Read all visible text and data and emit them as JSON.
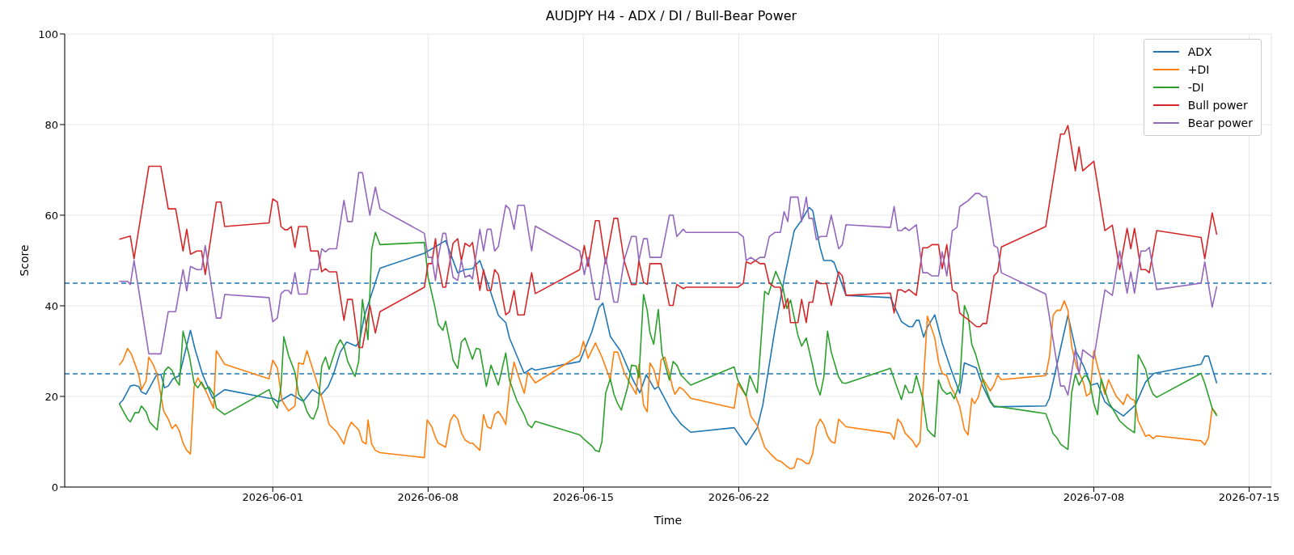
{
  "chart_data": {
    "type": "line",
    "title": "AUDJPY H4 - ADX / DI / Bull-Bear Power",
    "xlabel": "Time",
    "ylabel": "Score",
    "xlim": [
      "2026-05-22T15:00",
      "2026-07-16T00:00"
    ],
    "xticks": [
      "2026-06-01",
      "2026-06-08",
      "2026-06-15",
      "2026-06-22",
      "2026-07-01",
      "2026-07-08",
      "2026-07-15"
    ],
    "ylim": [
      0,
      100
    ],
    "yticks": [
      0,
      20,
      40,
      60,
      80,
      100
    ],
    "grid": true,
    "legend": "top right",
    "line_style": "solid",
    "ref_lines": [
      {
        "axis": "y",
        "value": 45,
        "color": "#1f77b4",
        "line_style": "dashed"
      },
      {
        "axis": "y",
        "value": 25,
        "color": "#1f77b4",
        "line_style": "dashed"
      }
    ],
    "series": [
      {
        "name": "ADX",
        "color": "#1f77b4",
        "x": [
          "2026-05-25T02:00",
          "2026-05-25T06:00",
          "2026-05-25T14:00",
          "2026-05-25T18:00",
          "2026-05-25T23:00",
          "2026-05-26T02:00",
          "2026-05-26T07:00",
          "2026-05-26T18:00",
          "2026-05-26T23:00",
          "2026-05-27T03:00",
          "2026-05-27T07:00",
          "2026-05-27T12:00",
          "2026-05-27T19:00",
          "2026-05-28T07:00",
          "2026-05-28T12:00",
          "2026-05-28T20:00",
          "2026-05-29T07:00",
          "2026-05-29T20:00",
          "2026-05-31T20:00",
          "2026-06-01T00:00",
          "2026-06-01T06:00",
          "2026-06-01T20:00",
          "2026-06-02T09:00",
          "2026-06-02T19:00",
          "2026-06-03T04:00",
          "2026-06-03T12:00",
          "2026-06-03T18:00",
          "2026-06-04T01:00",
          "2026-06-04T08:00",
          "2026-06-04T18:00",
          "2026-06-04T22:00",
          "2026-06-05T03:00",
          "2026-06-05T20:00",
          "2026-06-07T20:00",
          "2026-06-08T19:00",
          "2026-06-09T08:00",
          "2026-06-09T16:00",
          "2026-06-10T00:00",
          "2026-06-10T08:00",
          "2026-06-10T17:00",
          "2026-06-11T04:00",
          "2026-06-11T12:00",
          "2026-06-11T16:00",
          "2026-06-12T08:00",
          "2026-06-12T16:00",
          "2026-06-12T20:00",
          "2026-06-14T20:00",
          "2026-06-15T09:00",
          "2026-06-15T17:00",
          "2026-06-15T21:00",
          "2026-06-16T05:00",
          "2026-06-16T10:00",
          "2026-06-16T16:00",
          "2026-06-17T05:00",
          "2026-06-17T13:00",
          "2026-06-17T20:00",
          "2026-06-18T05:00",
          "2026-06-18T09:00",
          "2026-06-19T00:00",
          "2026-06-19T10:00",
          "2026-06-19T20:00",
          "2026-06-21T19:00",
          "2026-06-22T08:00",
          "2026-06-22T20:00",
          "2026-06-23T02:00",
          "2026-06-23T15:00",
          "2026-06-24T02:00",
          "2026-06-24T12:00",
          "2026-06-24T19:00",
          "2026-06-25T04:00",
          "2026-06-25T08:00",
          "2026-06-25T16:00",
          "2026-06-25T20:00",
          "2026-06-26T04:00",
          "2026-06-26T07:00",
          "2026-06-26T20:00",
          "2026-06-28T20:00",
          "2026-06-29T08:00",
          "2026-06-29T16:00",
          "2026-06-29T20:00",
          "2026-06-30T00:00",
          "2026-06-30T03:00",
          "2026-06-30T08:00",
          "2026-06-30T12:00",
          "2026-06-30T20:00",
          "2026-07-01T04:00",
          "2026-07-01T13:00",
          "2026-07-01T23:00",
          "2026-07-02T04:00",
          "2026-07-02T17:00",
          "2026-07-03T00:00",
          "2026-07-03T08:00",
          "2026-07-03T12:00",
          "2026-07-05T20:00",
          "2026-07-06T00:00",
          "2026-07-06T20:00",
          "2026-07-07T05:00",
          "2026-07-07T13:00",
          "2026-07-07T21:00",
          "2026-07-08T04:00",
          "2026-07-08T12:00",
          "2026-07-08T20:00",
          "2026-07-09T08:00",
          "2026-07-09T21:00",
          "2026-07-10T08:00",
          "2026-07-10T17:00",
          "2026-07-12T20:00",
          "2026-07-13T00:00",
          "2026-07-13T04:00",
          "2026-07-13T13:00"
        ],
        "values": [
          18.4,
          19.2,
          22.3,
          22.5,
          22.2,
          21.0,
          20.5,
          24.6,
          24.9,
          21.9,
          22.3,
          23.9,
          24.6,
          34.6,
          30.4,
          24.9,
          19.6,
          21.5,
          19.6,
          19.6,
          18.8,
          20.5,
          18.9,
          21.5,
          20.3,
          22.2,
          25.1,
          29.8,
          32.0,
          31.1,
          32.2,
          37.7,
          48.3,
          51.6,
          54.4,
          47.3,
          48.0,
          48.2,
          50.0,
          44.7,
          37.9,
          36.3,
          32.9,
          25.1,
          26.2,
          25.8,
          27.7,
          34.2,
          39.7,
          40.6,
          33.3,
          31.8,
          30.1,
          23.9,
          20.8,
          24.8,
          21.6,
          22.2,
          16.4,
          13.8,
          12.1,
          13.1,
          9.3,
          13.1,
          18.1,
          34.6,
          46.9,
          56.6,
          58.6,
          61.7,
          61.0,
          52.8,
          50.0,
          50.0,
          49.6,
          42.3,
          41.8,
          36.5,
          35.4,
          35.4,
          36.8,
          36.8,
          33.1,
          35.3,
          38.0,
          31.8,
          26.3,
          20.7,
          27.4,
          26.3,
          22.2,
          18.8,
          17.7,
          17.9,
          19.6,
          37.9,
          29.8,
          26.7,
          22.5,
          22.9,
          18.8,
          17.4,
          15.7,
          18.1,
          23.2,
          25.1,
          27.1,
          28.9,
          28.9,
          22.9
        ]
      },
      {
        "name": "+DI",
        "color": "#ff7f0e",
        "x": [
          "2026-05-25T02:00",
          "2026-05-25T06:00",
          "2026-05-25T11:00",
          "2026-05-25T15:00",
          "2026-05-25T23:00",
          "2026-05-26T02:00",
          "2026-05-26T07:00",
          "2026-05-26T10:00",
          "2026-05-26T15:00",
          "2026-05-26T19:00",
          "2026-05-27T02:00",
          "2026-05-27T07:00",
          "2026-05-27T11:00",
          "2026-05-27T15:00",
          "2026-05-27T19:00",
          "2026-05-27T23:00",
          "2026-05-28T03:00",
          "2026-05-28T07:00",
          "2026-05-28T11:00",
          "2026-05-28T15:00",
          "2026-05-28T19:00",
          "2026-05-28T23:00",
          "2026-05-29T08:00",
          "2026-05-29T11:00",
          "2026-05-29T20:00",
          "2026-05-31T20:00",
          "2026-06-01T00:00",
          "2026-06-01T05:00",
          "2026-06-01T10:00",
          "2026-06-01T17:00",
          "2026-06-02T00:00",
          "2026-06-02T04:00",
          "2026-06-02T09:00",
          "2026-06-02T13:00",
          "2026-06-02T21:00",
          "2026-06-03T06:00",
          "2026-06-03T13:00",
          "2026-06-03T21:00",
          "2026-06-04T05:00",
          "2026-06-04T09:00",
          "2026-06-04T13:00",
          "2026-06-04T21:00",
          "2026-06-05T01:00",
          "2026-06-05T05:00",
          "2026-06-05T07:00",
          "2026-06-05T11:00",
          "2026-06-05T15:00",
          "2026-06-05T20:00",
          "2026-06-07T20:00",
          "2026-06-07T23:00",
          "2026-06-08T04:00",
          "2026-06-08T08:00",
          "2026-06-08T11:00",
          "2026-06-08T19:00",
          "2026-06-09T00:00",
          "2026-06-09T04:00",
          "2026-06-09T08:00",
          "2026-06-09T12:00",
          "2026-06-09T16:00",
          "2026-06-09T21:00",
          "2026-06-10T00:00",
          "2026-06-10T08:00",
          "2026-06-10T12:00",
          "2026-06-10T16:00",
          "2026-06-10T20:00",
          "2026-06-11T00:00",
          "2026-06-11T04:00",
          "2026-06-11T08:00",
          "2026-06-11T12:00",
          "2026-06-11T16:00",
          "2026-06-11T21:00",
          "2026-06-12T01:00",
          "2026-06-12T08:00",
          "2026-06-12T12:00",
          "2026-06-12T20:00",
          "2026-06-14T20:00",
          "2026-06-15T00:00",
          "2026-06-15T05:00",
          "2026-06-15T13:00",
          "2026-06-15T20:00",
          "2026-06-16T05:00",
          "2026-06-16T09:00",
          "2026-06-16T13:00",
          "2026-06-16T20:00",
          "2026-06-17T04:00",
          "2026-06-17T09:00",
          "2026-06-17T12:00",
          "2026-06-17T17:00",
          "2026-06-17T21:00",
          "2026-06-18T00:00",
          "2026-06-18T04:00",
          "2026-06-18T09:00",
          "2026-06-18T12:00",
          "2026-06-18T16:00",
          "2026-06-18T21:00",
          "2026-06-19T01:00",
          "2026-06-19T03:00",
          "2026-06-19T08:00",
          "2026-06-19T12:00",
          "2026-06-19T20:00",
          "2026-06-21T19:00",
          "2026-06-21T23:00",
          "2026-06-22T08:00",
          "2026-06-22T13:00",
          "2026-06-22T20:00",
          "2026-06-23T04:00",
          "2026-06-23T10:00",
          "2026-06-23T17:00",
          "2026-06-23T22:00",
          "2026-06-24T03:00",
          "2026-06-24T08:00",
          "2026-06-24T12:00",
          "2026-06-24T15:00",
          "2026-06-24T20:00",
          "2026-06-25T01:00",
          "2026-06-25T04:00",
          "2026-06-25T08:00",
          "2026-06-25T12:00",
          "2026-06-25T16:00",
          "2026-06-25T20:00",
          "2026-06-26T00:00",
          "2026-06-26T04:00",
          "2026-06-26T08:00",
          "2026-06-26T12:00",
          "2026-06-26T20:00",
          "2026-06-28T20:00",
          "2026-06-29T00:00",
          "2026-06-29T04:00",
          "2026-06-29T08:00",
          "2026-06-29T12:00",
          "2026-06-29T20:00",
          "2026-06-30T00:00",
          "2026-06-30T04:00",
          "2026-06-30T12:00",
          "2026-06-30T16:00",
          "2026-06-30T20:00",
          "2026-07-01T00:00",
          "2026-07-01T04:00",
          "2026-07-01T09:00",
          "2026-07-01T13:00",
          "2026-07-01T18:00",
          "2026-07-01T23:00",
          "2026-07-02T04:00",
          "2026-07-02T08:00",
          "2026-07-02T12:00",
          "2026-07-02T15:00",
          "2026-07-02T19:00",
          "2026-07-03T00:00",
          "2026-07-03T08:00",
          "2026-07-03T12:00",
          "2026-07-03T16:00",
          "2026-07-03T20:00",
          "2026-07-05T20:00",
          "2026-07-06T00:00",
          "2026-07-06T04:00",
          "2026-07-06T08:00",
          "2026-07-06T12:00",
          "2026-07-06T16:00",
          "2026-07-06T20:00",
          "2026-07-07T00:00",
          "2026-07-07T05:00",
          "2026-07-07T13:00",
          "2026-07-07T16:00",
          "2026-07-07T20:00",
          "2026-07-08T00:00",
          "2026-07-08T04:00",
          "2026-07-08T12:00",
          "2026-07-08T16:00",
          "2026-07-09T00:00",
          "2026-07-09T08:00",
          "2026-07-09T12:00",
          "2026-07-09T16:00",
          "2026-07-09T20:00",
          "2026-07-10T00:00",
          "2026-07-10T08:00",
          "2026-07-10T12:00",
          "2026-07-10T16:00",
          "2026-07-10T20:00",
          "2026-07-12T20:00",
          "2026-07-13T00:00",
          "2026-07-13T04:00",
          "2026-07-13T08:00",
          "2026-07-13T13:00"
        ],
        "values": [
          26.9,
          28.0,
          30.6,
          29.4,
          24.9,
          21.5,
          23.4,
          28.7,
          26.9,
          24.9,
          16.8,
          15.0,
          12.9,
          13.8,
          12.4,
          9.7,
          8.1,
          7.3,
          22.2,
          24.1,
          22.7,
          21.5,
          17.4,
          30.1,
          27.1,
          23.9,
          28.0,
          26.3,
          19.1,
          16.8,
          17.9,
          27.4,
          27.1,
          30.1,
          24.9,
          19.1,
          13.8,
          12.2,
          9.5,
          12.6,
          14.3,
          12.6,
          10.0,
          9.5,
          14.8,
          9.5,
          8.1,
          7.6,
          6.5,
          14.8,
          13.3,
          10.9,
          9.7,
          8.8,
          14.6,
          16.0,
          15.0,
          12.0,
          10.4,
          9.7,
          9.7,
          8.1,
          16.0,
          13.3,
          12.9,
          16.0,
          16.7,
          15.5,
          13.8,
          21.6,
          27.6,
          24.9,
          20.7,
          25.3,
          23.0,
          29.1,
          32.2,
          28.4,
          31.8,
          28.7,
          23.7,
          29.8,
          29.8,
          25.3,
          22.3,
          20.5,
          27.1,
          18.1,
          16.6,
          27.4,
          26.0,
          22.2,
          28.0,
          28.7,
          24.9,
          21.6,
          20.5,
          22.0,
          21.5,
          19.6,
          17.4,
          22.9,
          20.1,
          15.7,
          13.6,
          8.8,
          7.4,
          6.0,
          5.6,
          4.7,
          4.0,
          4.3,
          6.3,
          6.0,
          5.2,
          5.2,
          7.4,
          13.3,
          15.0,
          13.8,
          11.3,
          10.0,
          9.7,
          15.0,
          13.3,
          11.9,
          10.5,
          15.0,
          14.0,
          11.9,
          10.2,
          8.8,
          10.0,
          37.7,
          35.3,
          32.9,
          27.7,
          25.1,
          24.6,
          22.2,
          20.3,
          17.7,
          12.7,
          11.5,
          19.6,
          18.4,
          19.8,
          23.9,
          21.2,
          22.5,
          24.7,
          23.7,
          24.6,
          28.7,
          37.9,
          39.0,
          39.0,
          41.1,
          39.0,
          31.1,
          26.7,
          22.9,
          20.1,
          20.7,
          30.1,
          26.7,
          20.5,
          23.7,
          20.1,
          18.2,
          20.5,
          19.5,
          19.1,
          14.6,
          11.2,
          11.5,
          10.7,
          11.3,
          10.2,
          9.3,
          10.9,
          17.4,
          16.0
        ]
      },
      {
        "name": "-DI",
        "color": "#2ca02c",
        "x": [
          "2026-05-25T02:00",
          "2026-05-25T11:00",
          "2026-05-25T14:00",
          "2026-05-25T19:00",
          "2026-05-25T23:00",
          "2026-05-26T02:00",
          "2026-05-26T07:00",
          "2026-05-26T11:00",
          "2026-05-26T19:00",
          "2026-05-27T03:00",
          "2026-05-27T07:00",
          "2026-05-27T11:00",
          "2026-05-27T15:00",
          "2026-05-27T19:00",
          "2026-05-27T23:00",
          "2026-05-28T06:00",
          "2026-05-28T11:00",
          "2026-05-28T15:00",
          "2026-05-28T19:00",
          "2026-05-28T23:00",
          "2026-05-29T03:00",
          "2026-05-29T08:00",
          "2026-05-29T11:00",
          "2026-05-29T20:00",
          "2026-05-31T20:00",
          "2026-06-01T00:00",
          "2026-06-01T05:00",
          "2026-06-01T09:00",
          "2026-06-01T12:00",
          "2026-06-01T17:00",
          "2026-06-02T00:00",
          "2026-06-02T04:00",
          "2026-06-02T09:00",
          "2026-06-02T13:00",
          "2026-06-02T17:00",
          "2026-06-02T20:00",
          "2026-06-03T01:00",
          "2026-06-03T05:00",
          "2026-06-03T09:00",
          "2026-06-03T13:00",
          "2026-06-03T21:00",
          "2026-06-04T01:00",
          "2026-06-04T05:00",
          "2026-06-04T09:00",
          "2026-06-04T14:00",
          "2026-06-04T17:00",
          "2026-06-04T21:00",
          "2026-06-05T01:00",
          "2026-06-05T05:00",
          "2026-06-05T07:00",
          "2026-06-05T11:00",
          "2026-06-05T15:00",
          "2026-06-05T20:00",
          "2026-06-07T20:00",
          "2026-06-08T00:00",
          "2026-06-08T07:00",
          "2026-06-08T11:00",
          "2026-06-08T16:00",
          "2026-06-08T19:00",
          "2026-06-09T00:00",
          "2026-06-09T03:00",
          "2026-06-09T08:00",
          "2026-06-09T12:00",
          "2026-06-09T16:00",
          "2026-06-10T00:00",
          "2026-06-10T04:00",
          "2026-06-10T08:00",
          "2026-06-10T15:00",
          "2026-06-10T20:00",
          "2026-06-11T04:00",
          "2026-06-11T12:00",
          "2026-06-11T16:00",
          "2026-06-12T00:00",
          "2026-06-12T08:00",
          "2026-06-12T12:00",
          "2026-06-12T16:00",
          "2026-06-12T20:00",
          "2026-06-14T20:00",
          "2026-06-15T01:00",
          "2026-06-15T09:00",
          "2026-06-15T13:00",
          "2026-06-15T17:00",
          "2026-06-15T20:00",
          "2026-06-16T00:00",
          "2026-06-16T05:00",
          "2026-06-16T09:00",
          "2026-06-16T13:00",
          "2026-06-16T17:00",
          "2026-06-17T00:00",
          "2026-06-17T04:00",
          "2026-06-17T09:00",
          "2026-06-17T12:00",
          "2026-06-17T17:00",
          "2026-06-17T21:00",
          "2026-06-18T00:00",
          "2026-06-18T04:00",
          "2026-06-18T09:00",
          "2026-06-18T13:00",
          "2026-06-18T21:00",
          "2026-06-19T01:00",
          "2026-06-19T05:00",
          "2026-06-19T10:00",
          "2026-06-19T20:00",
          "2026-06-21T19:00",
          "2026-06-21T23:00",
          "2026-06-22T08:00",
          "2026-06-22T12:00",
          "2026-06-22T20:00",
          "2026-06-23T04:00",
          "2026-06-23T08:00",
          "2026-06-23T16:00",
          "2026-06-24T00:00",
          "2026-06-24T04:00",
          "2026-06-24T08:00",
          "2026-06-24T16:00",
          "2026-06-24T20:00",
          "2026-06-25T01:00",
          "2026-06-25T08:00",
          "2026-06-25T12:00",
          "2026-06-25T16:00",
          "2026-06-25T20:00",
          "2026-06-26T00:00",
          "2026-06-26T04:00",
          "2026-06-26T12:00",
          "2026-06-26T16:00",
          "2026-06-26T20:00",
          "2026-06-28T20:00",
          "2026-06-29T04:00",
          "2026-06-29T08:00",
          "2026-06-29T12:00",
          "2026-06-29T16:00",
          "2026-06-29T20:00",
          "2026-06-30T00:00",
          "2026-06-30T07:00",
          "2026-06-30T12:00",
          "2026-06-30T16:00",
          "2026-06-30T20:00",
          "2026-07-01T00:00",
          "2026-07-01T04:00",
          "2026-07-01T09:00",
          "2026-07-01T13:00",
          "2026-07-01T17:00",
          "2026-07-01T23:00",
          "2026-07-02T04:00",
          "2026-07-02T08:00",
          "2026-07-02T12:00",
          "2026-07-02T16:00",
          "2026-07-03T00:00",
          "2026-07-03T08:00",
          "2026-07-03T12:00",
          "2026-07-05T20:00",
          "2026-07-06T00:00",
          "2026-07-06T04:00",
          "2026-07-06T08:00",
          "2026-07-06T12:00",
          "2026-07-06T20:00",
          "2026-07-07T00:00",
          "2026-07-07T04:00",
          "2026-07-07T08:00",
          "2026-07-07T13:00",
          "2026-07-07T16:00",
          "2026-07-07T20:00",
          "2026-07-08T00:00",
          "2026-07-08T04:00",
          "2026-07-08T08:00",
          "2026-07-08T16:00",
          "2026-07-09T04:00",
          "2026-07-09T12:00",
          "2026-07-09T20:00",
          "2026-07-10T00:00",
          "2026-07-10T08:00",
          "2026-07-10T12:00",
          "2026-07-10T16:00",
          "2026-07-10T20:00",
          "2026-07-12T20:00",
          "2026-07-13T00:00",
          "2026-07-13T08:00",
          "2026-07-13T13:00"
        ],
        "values": [
          18.4,
          15.0,
          14.4,
          16.4,
          16.4,
          17.9,
          16.6,
          14.3,
          12.6,
          25.6,
          26.5,
          25.8,
          23.7,
          22.5,
          34.4,
          28.7,
          22.9,
          21.9,
          23.2,
          21.6,
          22.1,
          20.5,
          17.4,
          16.0,
          21.5,
          19.1,
          17.4,
          22.2,
          33.2,
          29.1,
          25.3,
          20.5,
          19.1,
          16.7,
          15.3,
          15.0,
          17.7,
          26.7,
          28.7,
          26.0,
          31.0,
          32.5,
          31.1,
          27.8,
          25.6,
          24.4,
          27.8,
          41.4,
          35.6,
          32.5,
          52.4,
          56.2,
          53.5,
          54.0,
          46.3,
          40.1,
          35.9,
          34.6,
          36.6,
          31.5,
          28.0,
          26.2,
          32.0,
          32.9,
          28.2,
          30.6,
          30.4,
          22.2,
          26.9,
          22.5,
          29.6,
          23.6,
          19.1,
          15.9,
          13.8,
          13.1,
          14.5,
          11.5,
          10.5,
          9.1,
          8.1,
          7.8,
          10.0,
          20.7,
          23.9,
          20.5,
          18.4,
          17.0,
          22.2,
          26.9,
          26.7,
          24.1,
          42.5,
          39.0,
          34.0,
          31.5,
          39.2,
          29.4,
          23.6,
          27.7,
          26.9,
          24.6,
          22.5,
          26.5,
          23.6,
          20.1,
          24.6,
          20.8,
          43.2,
          42.5,
          47.6,
          43.8,
          39.4,
          41.3,
          33.5,
          31.1,
          32.9,
          26.7,
          22.5,
          20.3,
          24.3,
          34.4,
          29.8,
          24.3,
          23.0,
          22.9,
          26.2,
          21.5,
          19.3,
          22.5,
          20.8,
          20.9,
          24.6,
          19.5,
          12.7,
          11.8,
          11.1,
          23.6,
          21.5,
          20.5,
          20.9,
          19.5,
          22.9,
          40.1,
          38.0,
          31.5,
          29.4,
          23.6,
          19.1,
          17.9,
          16.2,
          14.1,
          11.8,
          10.9,
          9.5,
          8.3,
          20.8,
          24.9,
          22.5,
          24.4,
          24.6,
          22.9,
          18.4,
          16.0,
          23.9,
          18.8,
          14.6,
          13.1,
          12.0,
          29.2,
          26.0,
          22.5,
          20.5,
          19.8,
          25.1,
          22.9,
          17.4,
          15.7
        ]
      },
      {
        "name": "Bull power",
        "color": "#d62728",
        "x": [
          "2026-05-25T02:00",
          "2026-05-25T14:00",
          "2026-05-25T18:00",
          "2026-05-26T10:00",
          "2026-05-26T23:00",
          "2026-05-27T07:00",
          "2026-05-27T15:00",
          "2026-05-27T23:00",
          "2026-05-28T03:00",
          "2026-05-28T07:00",
          "2026-05-28T14:00",
          "2026-05-28T19:00",
          "2026-05-28T23:00",
          "2026-05-29T11:00",
          "2026-05-29T16:00",
          "2026-05-29T20:00",
          "2026-05-31T20:00",
          "2026-06-01T00:00",
          "2026-06-01T05:00",
          "2026-06-01T09:00",
          "2026-06-01T13:00",
          "2026-06-01T16:00",
          "2026-06-01T20:00",
          "2026-06-02T00:00",
          "2026-06-02T04:00",
          "2026-06-02T13:00",
          "2026-06-02T17:00",
          "2026-06-03T01:00",
          "2026-06-03T05:00",
          "2026-06-03T09:00",
          "2026-06-03T13:00",
          "2026-06-03T21:00",
          "2026-06-04T05:00",
          "2026-06-04T09:00",
          "2026-06-04T14:00",
          "2026-06-04T21:00",
          "2026-06-05T01:00",
          "2026-06-05T09:00",
          "2026-06-05T15:00",
          "2026-06-05T20:00",
          "2026-06-07T20:00",
          "2026-06-08T00:00",
          "2026-06-08T04:00",
          "2026-06-08T08:00",
          "2026-06-08T11:00",
          "2026-06-08T16:00",
          "2026-06-08T19:00",
          "2026-06-09T03:00",
          "2026-06-09T08:00",
          "2026-06-09T12:00",
          "2026-06-09T16:00",
          "2026-06-09T21:00",
          "2026-06-10T00:00",
          "2026-06-10T08:00",
          "2026-06-10T12:00",
          "2026-06-10T16:00",
          "2026-06-10T20:00",
          "2026-06-11T00:00",
          "2026-06-11T04:00",
          "2026-06-11T12:00",
          "2026-06-11T16:00",
          "2026-06-11T21:00",
          "2026-06-12T01:00",
          "2026-06-12T08:00",
          "2026-06-12T16:00",
          "2026-06-12T20:00",
          "2026-06-14T20:00",
          "2026-06-15T01:00",
          "2026-06-15T05:00",
          "2026-06-15T13:00",
          "2026-06-15T17:00",
          "2026-06-16T00:00",
          "2026-06-16T09:00",
          "2026-06-16T13:00",
          "2026-06-16T20:00",
          "2026-06-17T04:00",
          "2026-06-17T09:00",
          "2026-06-17T12:00",
          "2026-06-17T17:00",
          "2026-06-17T21:00",
          "2026-06-18T00:00",
          "2026-06-18T04:00",
          "2026-06-18T12:00",
          "2026-06-18T21:00",
          "2026-06-19T01:00",
          "2026-06-19T05:00",
          "2026-06-19T12:00",
          "2026-06-19T15:00",
          "2026-06-21T23:00",
          "2026-06-22T05:00",
          "2026-06-22T08:00",
          "2026-06-22T13:00",
          "2026-06-22T18:00",
          "2026-06-22T23:00",
          "2026-06-23T04:00",
          "2026-06-23T09:00",
          "2026-06-23T15:00",
          "2026-06-23T21:00",
          "2026-06-24T01:00",
          "2026-06-24T05:00",
          "2026-06-24T08:00",
          "2026-06-24T16:00",
          "2026-06-24T20:00",
          "2026-06-25T01:00",
          "2026-06-25T04:00",
          "2026-06-25T08:00",
          "2026-06-25T12:00",
          "2026-06-25T16:00",
          "2026-06-25T23:00",
          "2026-06-26T04:00",
          "2026-06-26T12:00",
          "2026-06-26T16:00",
          "2026-06-26T20:00",
          "2026-06-28T20:00",
          "2026-06-29T00:00",
          "2026-06-29T04:00",
          "2026-06-29T08:00",
          "2026-06-29T12:00",
          "2026-06-29T16:00",
          "2026-06-30T00:00",
          "2026-06-30T07:00",
          "2026-06-30T12:00",
          "2026-06-30T17:00",
          "2026-07-01T00:00",
          "2026-07-01T04:00",
          "2026-07-01T09:00",
          "2026-07-01T15:00",
          "2026-07-01T20:00",
          "2026-07-01T23:00",
          "2026-07-02T03:00",
          "2026-07-02T08:00",
          "2026-07-02T17:00",
          "2026-07-02T21:00",
          "2026-07-03T00:00",
          "2026-07-03T04:00",
          "2026-07-03T12:00",
          "2026-07-03T16:00",
          "2026-07-03T20:00",
          "2026-07-05T20:00",
          "2026-07-06T12:00",
          "2026-07-06T16:00",
          "2026-07-06T20:00",
          "2026-07-07T04:00",
          "2026-07-07T08:00",
          "2026-07-07T12:00",
          "2026-07-08T00:00",
          "2026-07-08T12:00",
          "2026-07-08T20:00",
          "2026-07-09T04:00",
          "2026-07-09T12:00",
          "2026-07-09T16:00",
          "2026-07-09T20:00",
          "2026-07-10T03:00",
          "2026-07-10T08:00",
          "2026-07-10T12:00",
          "2026-07-10T20:00",
          "2026-07-12T20:00",
          "2026-07-13T00:00",
          "2026-07-13T08:00",
          "2026-07-13T13:00"
        ],
        "values": [
          54.7,
          55.4,
          50.4,
          70.8,
          70.8,
          61.4,
          61.4,
          52.1,
          56.9,
          51.4,
          52.1,
          52.1,
          46.9,
          62.9,
          62.9,
          57.5,
          58.3,
          63.6,
          62.9,
          57.5,
          56.8,
          56.8,
          57.5,
          52.9,
          57.5,
          57.5,
          52.1,
          52.1,
          47.5,
          48.2,
          47.5,
          47.5,
          36.8,
          41.4,
          41.4,
          30.8,
          30.8,
          40.1,
          34.0,
          38.7,
          44.1,
          49.3,
          49.3,
          54.8,
          49.3,
          44.1,
          44.1,
          53.8,
          54.8,
          50.0,
          53.8,
          53.1,
          54.0,
          43.4,
          48.0,
          43.4,
          43.4,
          48.0,
          46.9,
          38.0,
          38.7,
          43.4,
          38.0,
          38.0,
          47.3,
          42.7,
          48.0,
          53.3,
          48.7,
          58.8,
          58.8,
          49.3,
          59.3,
          59.3,
          50.0,
          44.7,
          44.7,
          50.0,
          45.2,
          44.7,
          49.3,
          49.3,
          49.3,
          40.1,
          40.1,
          44.7,
          43.8,
          44.1,
          44.1,
          45.0,
          49.7,
          49.3,
          50.0,
          49.3,
          49.3,
          45.0,
          44.1,
          44.1,
          39.4,
          41.6,
          36.3,
          36.3,
          41.4,
          36.3,
          40.8,
          40.8,
          45.6,
          44.9,
          44.9,
          40.1,
          47.5,
          46.6,
          42.3,
          42.8,
          38.4,
          43.5,
          43.5,
          43.0,
          43.6,
          42.3,
          52.8,
          52.8,
          53.5,
          53.5,
          48.2,
          53.5,
          43.5,
          42.8,
          38.4,
          37.7,
          37.0,
          35.4,
          35.4,
          36.1,
          36.1,
          46.6,
          47.5,
          53.0,
          57.5,
          77.9,
          77.9,
          79.8,
          69.8,
          75.1,
          69.8,
          71.9,
          56.6,
          57.8,
          48.0,
          57.1,
          52.6,
          57.1,
          48.0,
          48.0,
          47.3,
          56.6,
          55.1,
          50.4,
          60.5,
          55.7
        ]
      },
      {
        "name": "Bear power",
        "color": "#9467bd",
        "x": [
          "2026-05-25T02:00",
          "2026-05-25T11:00",
          "2026-05-25T14:00",
          "2026-05-25T18:00",
          "2026-05-26T10:00",
          "2026-05-26T23:00",
          "2026-05-27T07:00",
          "2026-05-27T15:00",
          "2026-05-27T23:00",
          "2026-05-28T03:00",
          "2026-05-28T07:00",
          "2026-05-28T14:00",
          "2026-05-28T19:00",
          "2026-05-28T23:00",
          "2026-05-29T11:00",
          "2026-05-29T16:00",
          "2026-05-29T20:00",
          "2026-05-31T20:00",
          "2026-06-01T00:00",
          "2026-06-01T05:00",
          "2026-06-01T09:00",
          "2026-06-01T13:00",
          "2026-06-01T17:00",
          "2026-06-01T20:00",
          "2026-06-02T00:00",
          "2026-06-02T04:00",
          "2026-06-02T13:00",
          "2026-06-02T17:00",
          "2026-06-03T01:00",
          "2026-06-03T05:00",
          "2026-06-03T09:00",
          "2026-06-03T13:00",
          "2026-06-03T21:00",
          "2026-06-04T05:00",
          "2026-06-04T09:00",
          "2026-06-04T14:00",
          "2026-06-04T21:00",
          "2026-06-05T01:00",
          "2026-06-05T09:00",
          "2026-06-05T15:00",
          "2026-06-05T20:00",
          "2026-06-07T20:00",
          "2026-06-08T00:00",
          "2026-06-08T04:00",
          "2026-06-08T08:00",
          "2026-06-08T11:00",
          "2026-06-08T16:00",
          "2026-06-08T19:00",
          "2026-06-09T03:00",
          "2026-06-09T08:00",
          "2026-06-09T12:00",
          "2026-06-09T16:00",
          "2026-06-09T21:00",
          "2026-06-10T00:00",
          "2026-06-10T08:00",
          "2026-06-10T12:00",
          "2026-06-10T16:00",
          "2026-06-10T20:00",
          "2026-06-11T00:00",
          "2026-06-11T04:00",
          "2026-06-11T12:00",
          "2026-06-11T16:00",
          "2026-06-11T21:00",
          "2026-06-12T01:00",
          "2026-06-12T08:00",
          "2026-06-12T16:00",
          "2026-06-12T20:00",
          "2026-06-14T20:00",
          "2026-06-15T01:00",
          "2026-06-15T05:00",
          "2026-06-15T13:00",
          "2026-06-15T17:00",
          "2026-06-16T00:00",
          "2026-06-16T09:00",
          "2026-06-16T13:00",
          "2026-06-16T20:00",
          "2026-06-17T04:00",
          "2026-06-17T09:00",
          "2026-06-17T12:00",
          "2026-06-17T17:00",
          "2026-06-17T21:00",
          "2026-06-18T00:00",
          "2026-06-18T04:00",
          "2026-06-18T12:00",
          "2026-06-18T21:00",
          "2026-06-19T01:00",
          "2026-06-19T05:00",
          "2026-06-19T12:00",
          "2026-06-19T15:00",
          "2026-06-21T23:00",
          "2026-06-22T05:00",
          "2026-06-22T08:00",
          "2026-06-22T13:00",
          "2026-06-22T18:00",
          "2026-06-22T23:00",
          "2026-06-23T04:00",
          "2026-06-23T09:00",
          "2026-06-23T15:00",
          "2026-06-23T21:00",
          "2026-06-24T01:00",
          "2026-06-24T05:00",
          "2026-06-24T08:00",
          "2026-06-24T16:00",
          "2026-06-24T20:00",
          "2026-06-25T01:00",
          "2026-06-25T04:00",
          "2026-06-25T08:00",
          "2026-06-25T12:00",
          "2026-06-25T16:00",
          "2026-06-25T23:00",
          "2026-06-26T04:00",
          "2026-06-26T12:00",
          "2026-06-26T16:00",
          "2026-06-26T20:00",
          "2026-06-28T20:00",
          "2026-06-29T00:00",
          "2026-06-29T04:00",
          "2026-06-29T08:00",
          "2026-06-29T12:00",
          "2026-06-29T16:00",
          "2026-06-30T00:00",
          "2026-06-30T07:00",
          "2026-06-30T12:00",
          "2026-06-30T17:00",
          "2026-07-01T00:00",
          "2026-07-01T04:00",
          "2026-07-01T09:00",
          "2026-07-01T15:00",
          "2026-07-01T20:00",
          "2026-07-01T23:00",
          "2026-07-02T03:00",
          "2026-07-02T08:00",
          "2026-07-02T16:00",
          "2026-07-02T20:00",
          "2026-07-03T00:00",
          "2026-07-03T04:00",
          "2026-07-03T12:00",
          "2026-07-03T16:00",
          "2026-07-03T20:00",
          "2026-07-05T20:00",
          "2026-07-06T12:00",
          "2026-07-06T16:00",
          "2026-07-06T20:00",
          "2026-07-07T04:00",
          "2026-07-07T08:00",
          "2026-07-07T12:00",
          "2026-07-08T00:00",
          "2026-07-08T12:00",
          "2026-07-08T20:00",
          "2026-07-09T04:00",
          "2026-07-09T12:00",
          "2026-07-09T16:00",
          "2026-07-09T20:00",
          "2026-07-10T03:00",
          "2026-07-10T08:00",
          "2026-07-10T12:00",
          "2026-07-10T20:00",
          "2026-07-12T20:00",
          "2026-07-13T00:00",
          "2026-07-13T08:00",
          "2026-07-13T13:00"
        ],
        "values": [
          45.4,
          45.4,
          44.7,
          50.0,
          29.4,
          29.4,
          38.7,
          38.7,
          48.0,
          43.3,
          48.7,
          48.0,
          48.0,
          53.3,
          37.3,
          37.3,
          42.5,
          41.8,
          36.5,
          37.3,
          42.7,
          43.4,
          43.4,
          42.6,
          47.3,
          42.6,
          42.6,
          48.0,
          48.0,
          52.6,
          51.9,
          52.6,
          52.6,
          63.3,
          58.6,
          58.6,
          69.4,
          69.4,
          60.0,
          66.2,
          61.4,
          56.0,
          50.7,
          50.7,
          45.6,
          50.7,
          56.0,
          56.0,
          46.3,
          45.6,
          50.0,
          46.3,
          46.8,
          45.9,
          56.9,
          52.1,
          56.9,
          56.9,
          52.1,
          53.1,
          62.2,
          61.4,
          56.9,
          62.2,
          62.2,
          52.1,
          57.6,
          52.1,
          46.9,
          50.7,
          41.4,
          41.4,
          50.7,
          40.8,
          40.8,
          50.0,
          55.3,
          55.3,
          50.0,
          54.8,
          54.8,
          50.7,
          50.7,
          50.7,
          60.0,
          60.0,
          55.3,
          56.9,
          56.2,
          56.2,
          55.2,
          50.0,
          50.7,
          50.0,
          50.7,
          50.7,
          55.3,
          56.2,
          56.2,
          60.8,
          58.6,
          64.0,
          64.0,
          58.6,
          64.0,
          59.3,
          59.3,
          54.6,
          55.3,
          55.3,
          60.0,
          52.6,
          53.5,
          57.9,
          57.3,
          61.9,
          56.6,
          56.6,
          57.3,
          56.6,
          57.9,
          47.3,
          47.3,
          46.6,
          46.6,
          51.9,
          46.6,
          56.6,
          57.3,
          61.9,
          62.5,
          63.2,
          64.8,
          64.8,
          64.1,
          64.1,
          53.3,
          52.8,
          47.3,
          42.6,
          22.3,
          22.3,
          20.3,
          30.3,
          24.9,
          30.3,
          28.4,
          43.5,
          42.3,
          52.1,
          42.8,
          47.5,
          42.8,
          52.1,
          52.1,
          52.9,
          43.6,
          45.0,
          49.7,
          39.7,
          44.3
        ]
      }
    ]
  }
}
